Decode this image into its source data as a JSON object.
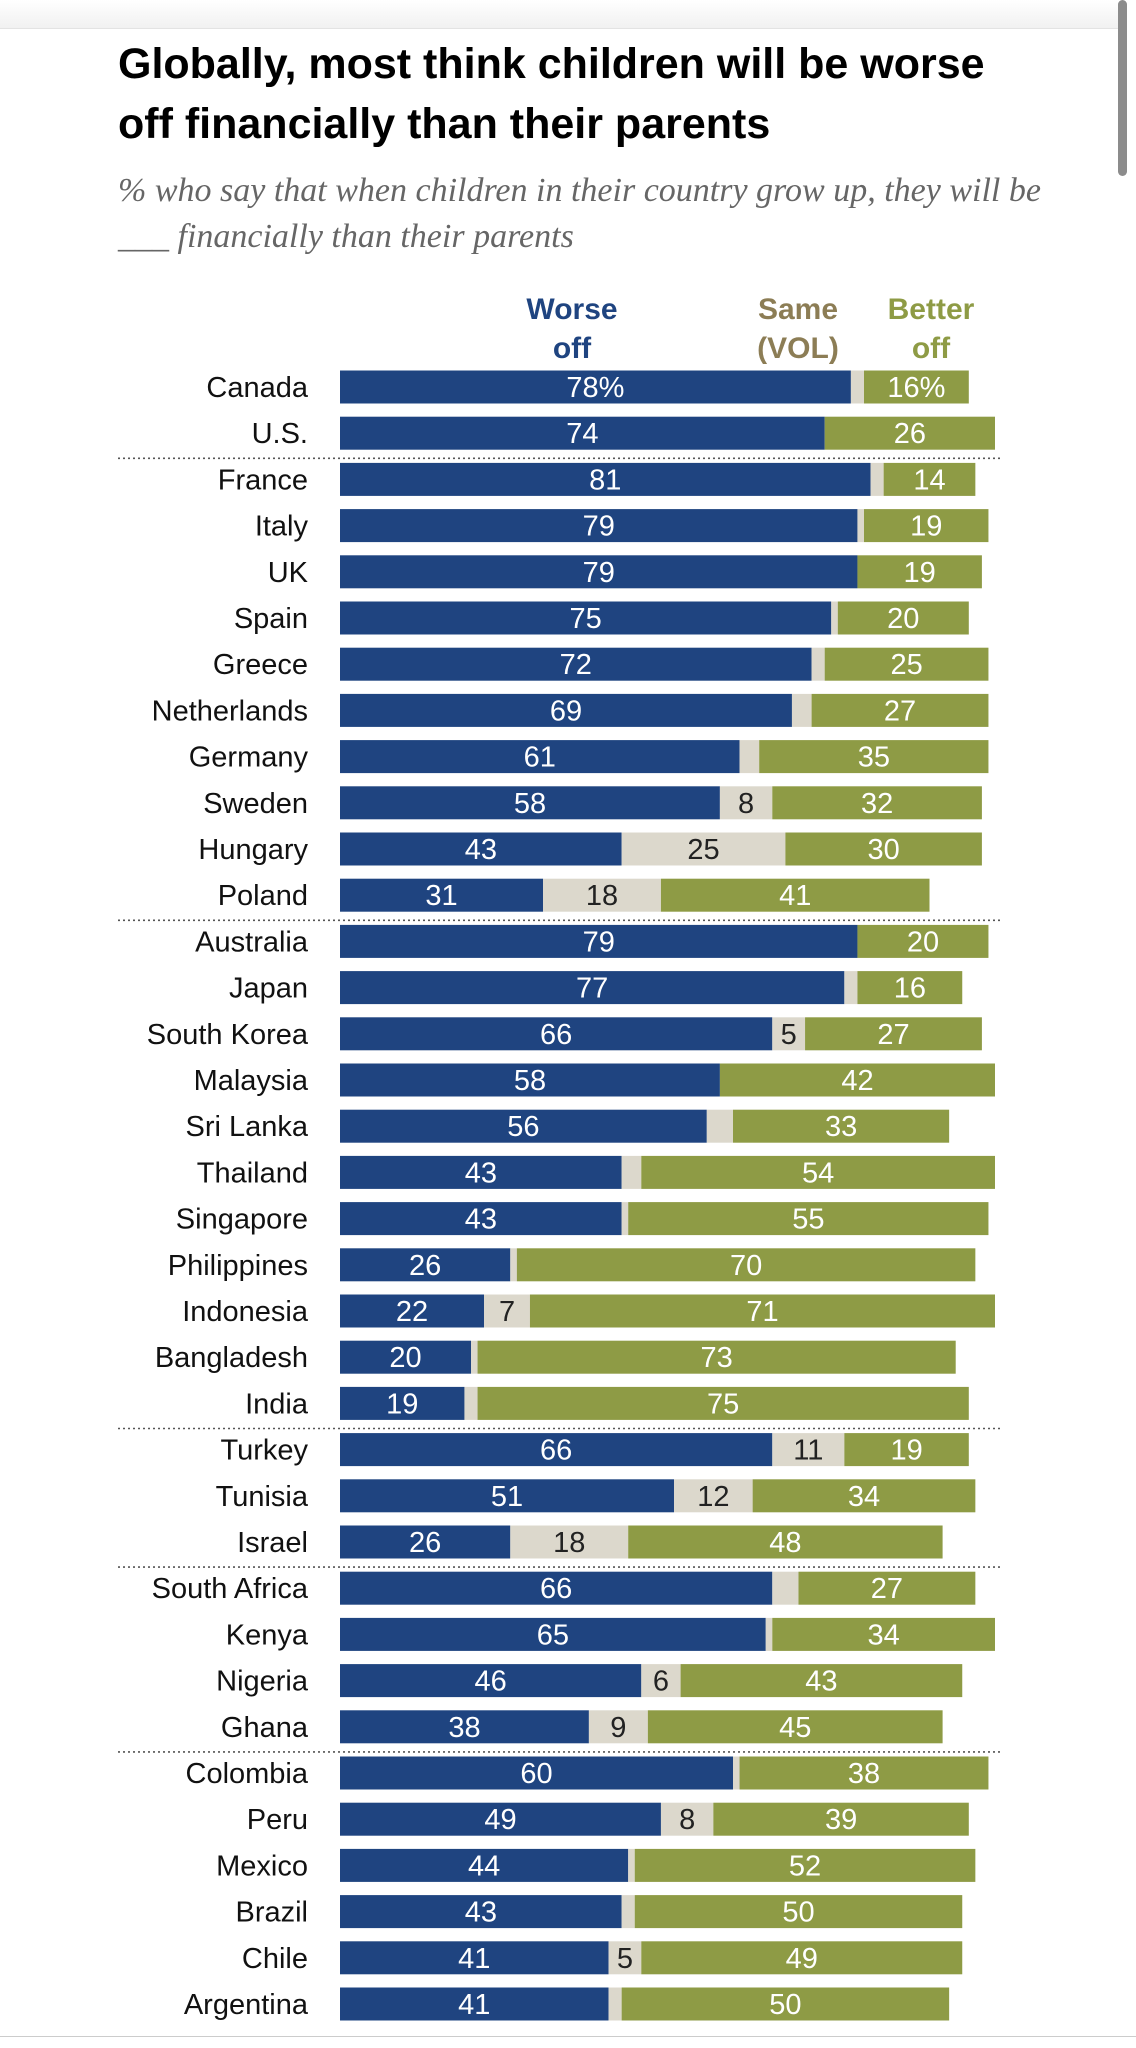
{
  "header": {
    "title": "Globally, most think children will be worse off financially than their parents",
    "subtitle": "% who say that when children in their country grow up, they will be ___ financially than their parents"
  },
  "colors": {
    "worse": "#1f4480",
    "same": "#dcd8cc",
    "better": "#8e9b45",
    "same_header": "#8c7d55",
    "better_header": "#8e9b45"
  },
  "chart_data": {
    "type": "bar",
    "stacked": true,
    "orientation": "horizontal",
    "title": "Globally, most think children will be worse off financially than their parents",
    "subtitle": "% who say that when children in their country grow up, they will be ___ financially than their parents",
    "series": [
      {
        "name": "Worse off",
        "header_lines": [
          "Worse",
          "off"
        ]
      },
      {
        "name": "Same (VOL)",
        "header_lines": [
          "Same",
          "(VOL)"
        ]
      },
      {
        "name": "Better off",
        "header_lines": [
          "Better",
          "off"
        ]
      }
    ],
    "groups": [
      {
        "rows": [
          {
            "country": "Canada",
            "worse": 78,
            "same": 2,
            "better": 16,
            "worse_label": "78%",
            "better_label": "16%"
          },
          {
            "country": "U.S.",
            "worse": 74,
            "same": 0,
            "better": 26
          }
        ]
      },
      {
        "rows": [
          {
            "country": "France",
            "worse": 81,
            "same": 2,
            "better": 14
          },
          {
            "country": "Italy",
            "worse": 79,
            "same": 1,
            "better": 19
          },
          {
            "country": "UK",
            "worse": 79,
            "same": 0,
            "better": 19
          },
          {
            "country": "Spain",
            "worse": 75,
            "same": 1,
            "better": 20
          },
          {
            "country": "Greece",
            "worse": 72,
            "same": 2,
            "better": 25
          },
          {
            "country": "Netherlands",
            "worse": 69,
            "same": 3,
            "better": 27
          },
          {
            "country": "Germany",
            "worse": 61,
            "same": 3,
            "better": 35
          },
          {
            "country": "Sweden",
            "worse": 58,
            "same": 8,
            "better": 32
          },
          {
            "country": "Hungary",
            "worse": 43,
            "same": 25,
            "better": 30
          },
          {
            "country": "Poland",
            "worse": 31,
            "same": 18,
            "better": 41
          }
        ]
      },
      {
        "rows": [
          {
            "country": "Australia",
            "worse": 79,
            "same": 0,
            "better": 20
          },
          {
            "country": "Japan",
            "worse": 77,
            "same": 2,
            "better": 16
          },
          {
            "country": "South Korea",
            "worse": 66,
            "same": 5,
            "better": 27
          },
          {
            "country": "Malaysia",
            "worse": 58,
            "same": 0,
            "better": 42
          },
          {
            "country": "Sri Lanka",
            "worse": 56,
            "same": 4,
            "better": 33
          },
          {
            "country": "Thailand",
            "worse": 43,
            "same": 3,
            "better": 54
          },
          {
            "country": "Singapore",
            "worse": 43,
            "same": 1,
            "better": 55
          },
          {
            "country": "Philippines",
            "worse": 26,
            "same": 1,
            "better": 70
          },
          {
            "country": "Indonesia",
            "worse": 22,
            "same": 7,
            "better": 71
          },
          {
            "country": "Bangladesh",
            "worse": 20,
            "same": 1,
            "better": 73
          },
          {
            "country": "India",
            "worse": 19,
            "same": 2,
            "better": 75
          }
        ]
      },
      {
        "rows": [
          {
            "country": "Turkey",
            "worse": 66,
            "same": 11,
            "better": 19
          },
          {
            "country": "Tunisia",
            "worse": 51,
            "same": 12,
            "better": 34
          },
          {
            "country": "Israel",
            "worse": 26,
            "same": 18,
            "better": 48
          }
        ]
      },
      {
        "rows": [
          {
            "country": "South Africa",
            "worse": 66,
            "same": 4,
            "better": 27
          },
          {
            "country": "Kenya",
            "worse": 65,
            "same": 1,
            "better": 34
          },
          {
            "country": "Nigeria",
            "worse": 46,
            "same": 6,
            "better": 43
          },
          {
            "country": "Ghana",
            "worse": 38,
            "same": 9,
            "better": 45
          }
        ]
      },
      {
        "rows": [
          {
            "country": "Colombia",
            "worse": 60,
            "same": 1,
            "better": 38
          },
          {
            "country": "Peru",
            "worse": 49,
            "same": 8,
            "better": 39
          },
          {
            "country": "Mexico",
            "worse": 44,
            "same": 1,
            "better": 52
          },
          {
            "country": "Brazil",
            "worse": 43,
            "same": 2,
            "better": 50
          },
          {
            "country": "Chile",
            "worse": 41,
            "same": 5,
            "better": 49
          },
          {
            "country": "Argentina",
            "worse": 41,
            "same": 2,
            "better": 50
          }
        ]
      }
    ],
    "same_label_min": 5,
    "xlim": [
      0,
      100
    ],
    "unit": "%"
  }
}
